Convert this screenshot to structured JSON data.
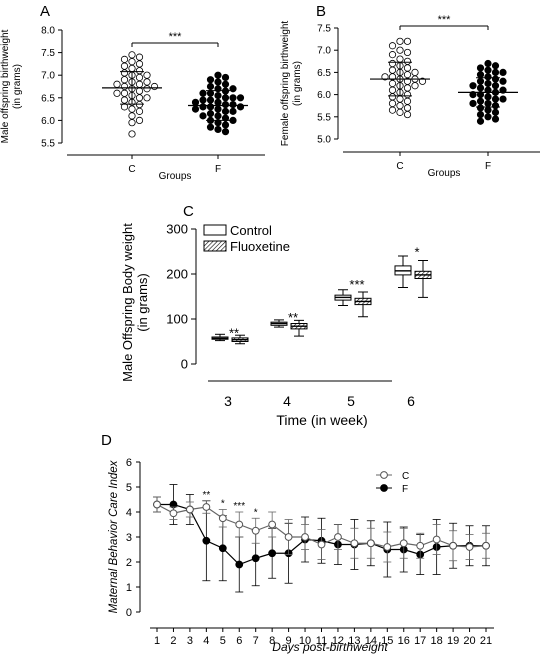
{
  "chart_data": [
    {
      "panel_label": "A",
      "type": "scatter",
      "ylabel_lines": [
        "Male offspring birthweight",
        "(in grams)"
      ],
      "xlabel": "Groups",
      "categories": [
        "C",
        "F"
      ],
      "ylim": [
        5.5,
        8.0
      ],
      "yticks": [
        "5.5",
        "6.0",
        "6.5",
        "7.0",
        "7.5",
        "8.0"
      ],
      "significance": "***",
      "series": [
        {
          "name": "C",
          "mean": 6.72,
          "sd": 0.36,
          "values": [
            7.45,
            7.4,
            7.35,
            7.3,
            7.25,
            7.2,
            7.15,
            7.1,
            7.05,
            7.0,
            7.0,
            6.95,
            6.9,
            6.85,
            6.85,
            6.8,
            6.8,
            6.75,
            6.75,
            6.7,
            6.7,
            6.65,
            6.6,
            6.6,
            6.55,
            6.5,
            6.5,
            6.45,
            6.4,
            6.35,
            6.3,
            6.25,
            6.2,
            6.1,
            6.0,
            5.95,
            5.7
          ]
        },
        {
          "name": "F",
          "mean": 6.33,
          "sd": 0.33,
          "values": [
            7.0,
            6.95,
            6.9,
            6.85,
            6.8,
            6.75,
            6.7,
            6.7,
            6.65,
            6.6,
            6.6,
            6.55,
            6.5,
            6.5,
            6.5,
            6.45,
            6.45,
            6.4,
            6.4,
            6.35,
            6.35,
            6.3,
            6.3,
            6.3,
            6.25,
            6.25,
            6.2,
            6.2,
            6.15,
            6.1,
            6.1,
            6.05,
            6.0,
            6.0,
            5.95,
            5.9,
            5.85,
            5.8,
            5.75
          ]
        }
      ]
    },
    {
      "panel_label": "B",
      "type": "scatter",
      "ylabel_lines": [
        "Female offspring birthweight",
        "(in grams)"
      ],
      "xlabel": "Groups",
      "categories": [
        "C",
        "F"
      ],
      "ylim": [
        5.0,
        7.5
      ],
      "yticks": [
        "5.0",
        "5.5",
        "6.0",
        "6.5",
        "7.0",
        "7.5"
      ],
      "significance": "***",
      "series": [
        {
          "name": "C",
          "mean": 6.35,
          "sd": 0.38,
          "values": [
            7.2,
            7.2,
            7.1,
            7.0,
            6.95,
            6.9,
            6.8,
            6.75,
            6.7,
            6.65,
            6.6,
            6.55,
            6.5,
            6.5,
            6.45,
            6.4,
            6.4,
            6.35,
            6.35,
            6.3,
            6.3,
            6.25,
            6.2,
            6.2,
            6.15,
            6.1,
            6.05,
            6.0,
            5.95,
            5.9,
            5.85,
            5.8,
            5.75,
            5.7,
            5.65,
            5.6,
            5.55
          ]
        },
        {
          "name": "F",
          "mean": 6.05,
          "sd": 0.33,
          "values": [
            6.7,
            6.65,
            6.6,
            6.55,
            6.5,
            6.5,
            6.45,
            6.4,
            6.35,
            6.3,
            6.3,
            6.25,
            6.2,
            6.2,
            6.15,
            6.1,
            6.1,
            6.05,
            6.0,
            6.0,
            5.95,
            5.9,
            5.9,
            5.85,
            5.8,
            5.8,
            5.75,
            5.7,
            5.65,
            5.6,
            5.55,
            5.5,
            5.45,
            5.4
          ]
        }
      ]
    },
    {
      "panel_label": "C",
      "type": "box",
      "ylabel_lines": [
        "Male Offspring Body weight",
        "(in grams)"
      ],
      "xlabel": "Time (in week)",
      "categories": [
        "3",
        "4",
        "5",
        "6"
      ],
      "ylim": [
        0,
        300
      ],
      "yticks": [
        "0",
        "100",
        "200",
        "300"
      ],
      "legend": {
        "placement": "top-left",
        "entries": [
          "Control",
          "Fluoxetine"
        ]
      },
      "series": [
        {
          "name": "Control",
          "boxes": [
            {
              "min": 52,
              "q1": 55,
              "median": 57,
              "q3": 60,
              "max": 66
            },
            {
              "min": 82,
              "q1": 86,
              "median": 90,
              "q3": 93,
              "max": 98
            },
            {
              "min": 130,
              "q1": 142,
              "median": 148,
              "q3": 153,
              "max": 165
            },
            {
              "min": 170,
              "q1": 198,
              "median": 207,
              "q3": 218,
              "max": 240
            }
          ]
        },
        {
          "name": "Fluoxetine",
          "boxes": [
            {
              "min": 45,
              "q1": 50,
              "median": 54,
              "q3": 58,
              "max": 64
            },
            {
              "min": 62,
              "q1": 78,
              "median": 84,
              "q3": 90,
              "max": 97
            },
            {
              "min": 105,
              "q1": 132,
              "median": 139,
              "q3": 146,
              "max": 160
            },
            {
              "min": 148,
              "q1": 190,
              "median": 198,
              "q3": 206,
              "max": 230
            }
          ]
        }
      ],
      "annotations": [
        "**",
        "**",
        "***",
        "*"
      ]
    },
    {
      "panel_label": "D",
      "type": "line",
      "ylabel": "Maternal Behavior Care Index",
      "xlabel": "Days post-birthweight",
      "x": [
        1,
        2,
        3,
        4,
        5,
        6,
        7,
        8,
        9,
        10,
        11,
        12,
        13,
        14,
        15,
        16,
        17,
        18,
        19,
        20,
        21
      ],
      "ylim": [
        0,
        6
      ],
      "yticks": [
        "0",
        "1",
        "2",
        "3",
        "4",
        "5",
        "6"
      ],
      "legend": {
        "placement": "top-right",
        "entries": [
          "C",
          "F"
        ]
      },
      "series": [
        {
          "name": "C",
          "values": [
            4.3,
            3.95,
            4.1,
            4.2,
            3.75,
            3.5,
            3.25,
            3.5,
            3.0,
            3.0,
            2.7,
            3.0,
            2.75,
            2.75,
            2.6,
            2.75,
            2.65,
            2.9,
            2.65,
            2.6,
            2.65
          ],
          "err": [
            0.3,
            0.25,
            0.3,
            0.25,
            0.35,
            0.5,
            0.5,
            0.5,
            0.7,
            0.5,
            0.6,
            0.5,
            0.6,
            0.6,
            0.6,
            0.6,
            0.5,
            0.6,
            0.6,
            0.5,
            0.5
          ]
        },
        {
          "name": "F",
          "values": [
            4.3,
            4.3,
            4.1,
            2.85,
            2.55,
            1.9,
            2.15,
            2.35,
            2.35,
            2.9,
            2.85,
            2.7,
            2.7,
            2.75,
            2.5,
            2.5,
            2.3,
            2.6,
            2.65,
            2.65,
            2.65
          ],
          "err": [
            0.3,
            0.8,
            0.6,
            1.6,
            1.3,
            1.1,
            1.1,
            1.0,
            1.2,
            0.9,
            0.9,
            0.8,
            1.0,
            0.9,
            1.1,
            0.9,
            0.8,
            1.1,
            0.9,
            0.8,
            0.8
          ]
        }
      ],
      "annotations": [
        {
          "day": 4,
          "text": "**"
        },
        {
          "day": 5,
          "text": "*"
        },
        {
          "day": 6,
          "text": "***"
        },
        {
          "day": 7,
          "text": "*"
        }
      ]
    }
  ]
}
